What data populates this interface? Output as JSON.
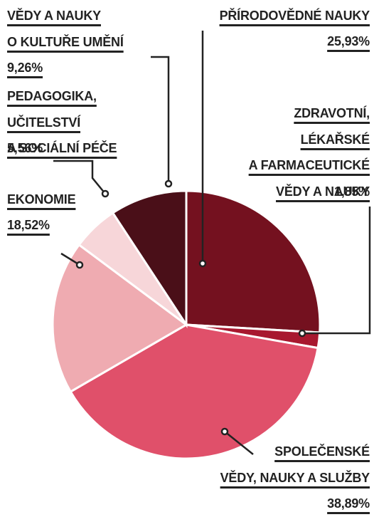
{
  "chart_data": {
    "type": "pie",
    "categories": [
      "PŘÍRODOVĚDNÉ NAUKY",
      "ZDRAVOTNÍ,\nLÉKAŘSKÉ\nA FARMACEUTICKÉ\nVĚDY A NAUKY",
      "SPOLEČENSKÉ\nVĚDY, NAUKY A SLUŽBY",
      "EKONOMIE",
      "PEDAGOGIKA,\nUČITELSTVÍ\nA SOCIÁLNÍ PÉČE",
      "VĚDY A NAUKY\nO KULTUŘE UMĚNÍ"
    ],
    "values": [
      25.93,
      1.85,
      38.89,
      18.52,
      5.56,
      9.26
    ],
    "value_labels": [
      "25,93%",
      "1,85%",
      "38,89%",
      "18,52%",
      "5,56%",
      "9,26%"
    ],
    "colors": [
      "#74111f",
      "#a8182f",
      "#e0506a",
      "#efabb1",
      "#f7d6d9",
      "#4a0f18"
    ]
  }
}
